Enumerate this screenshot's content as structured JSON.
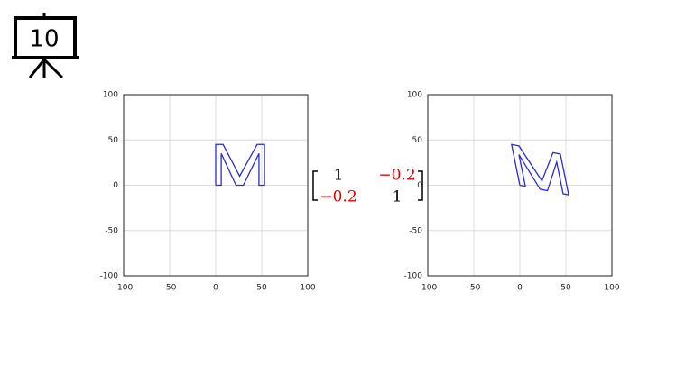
{
  "icon_label": "10",
  "matrix": {
    "rows": [
      [
        "1",
        "−0.2"
      ],
      [
        "−0.2",
        "1"
      ]
    ]
  },
  "chart_data": [
    {
      "type": "line",
      "x": [
        0,
        0,
        8,
        26,
        45,
        53,
        53,
        47,
        47,
        30,
        22,
        6,
        6,
        0
      ],
      "series": [
        {
          "color": "#2a2ad8",
          "values": [
            0,
            45,
            45,
            10,
            45,
            45,
            0,
            0,
            35,
            0,
            0,
            35,
            0,
            0
          ]
        }
      ],
      "xlim": [
        -100,
        100
      ],
      "ylim": [
        -100,
        100
      ],
      "xticks": [
        -100,
        -50,
        0,
        50,
        100
      ],
      "yticks": [
        -100,
        -50,
        0,
        50,
        100
      ],
      "grid": true
    },
    {
      "type": "line",
      "x": [
        0,
        -9,
        -1,
        24,
        36,
        44,
        53,
        47,
        40,
        30,
        22,
        -1,
        6,
        0
      ],
      "series": [
        {
          "color": "#2a2ad8",
          "values": [
            0,
            45,
            43.4,
            4.8,
            36,
            34.4,
            -10.6,
            -9.4,
            25.6,
            -6,
            -4.4,
            33.8,
            -1.2,
            0
          ]
        }
      ],
      "xlim": [
        -100,
        100
      ],
      "ylim": [
        -100,
        100
      ],
      "xticks": [
        -100,
        -50,
        0,
        50,
        100
      ],
      "yticks": [
        -100,
        -50,
        0,
        50,
        100
      ],
      "grid": true
    }
  ]
}
